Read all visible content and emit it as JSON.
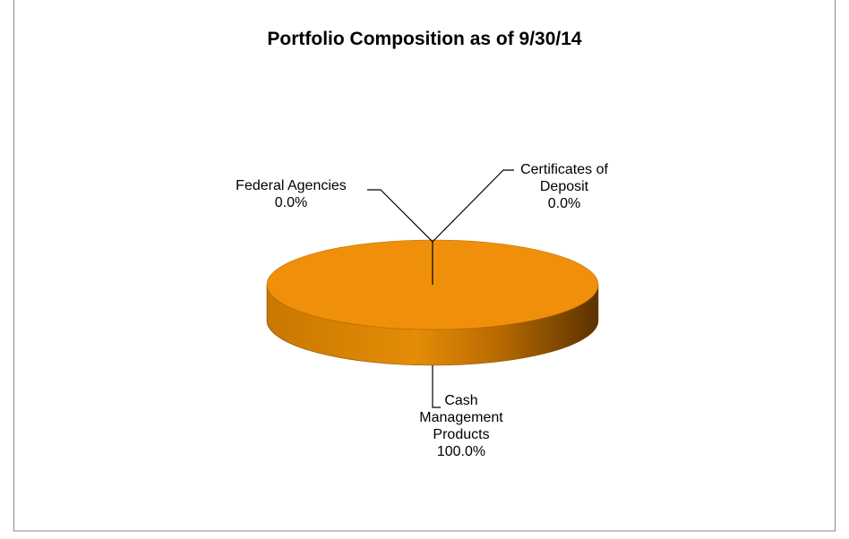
{
  "chart_data": {
    "type": "pie",
    "title": "Portfolio Composition as of 9/30/14",
    "categories": [
      "Federal Agencies",
      "Certificates of Deposit",
      "Cash Management Products"
    ],
    "values": [
      0,
      0,
      100
    ],
    "value_labels": [
      "0.0%",
      "0.0%",
      "100.0%"
    ],
    "color": "#f0900a"
  }
}
